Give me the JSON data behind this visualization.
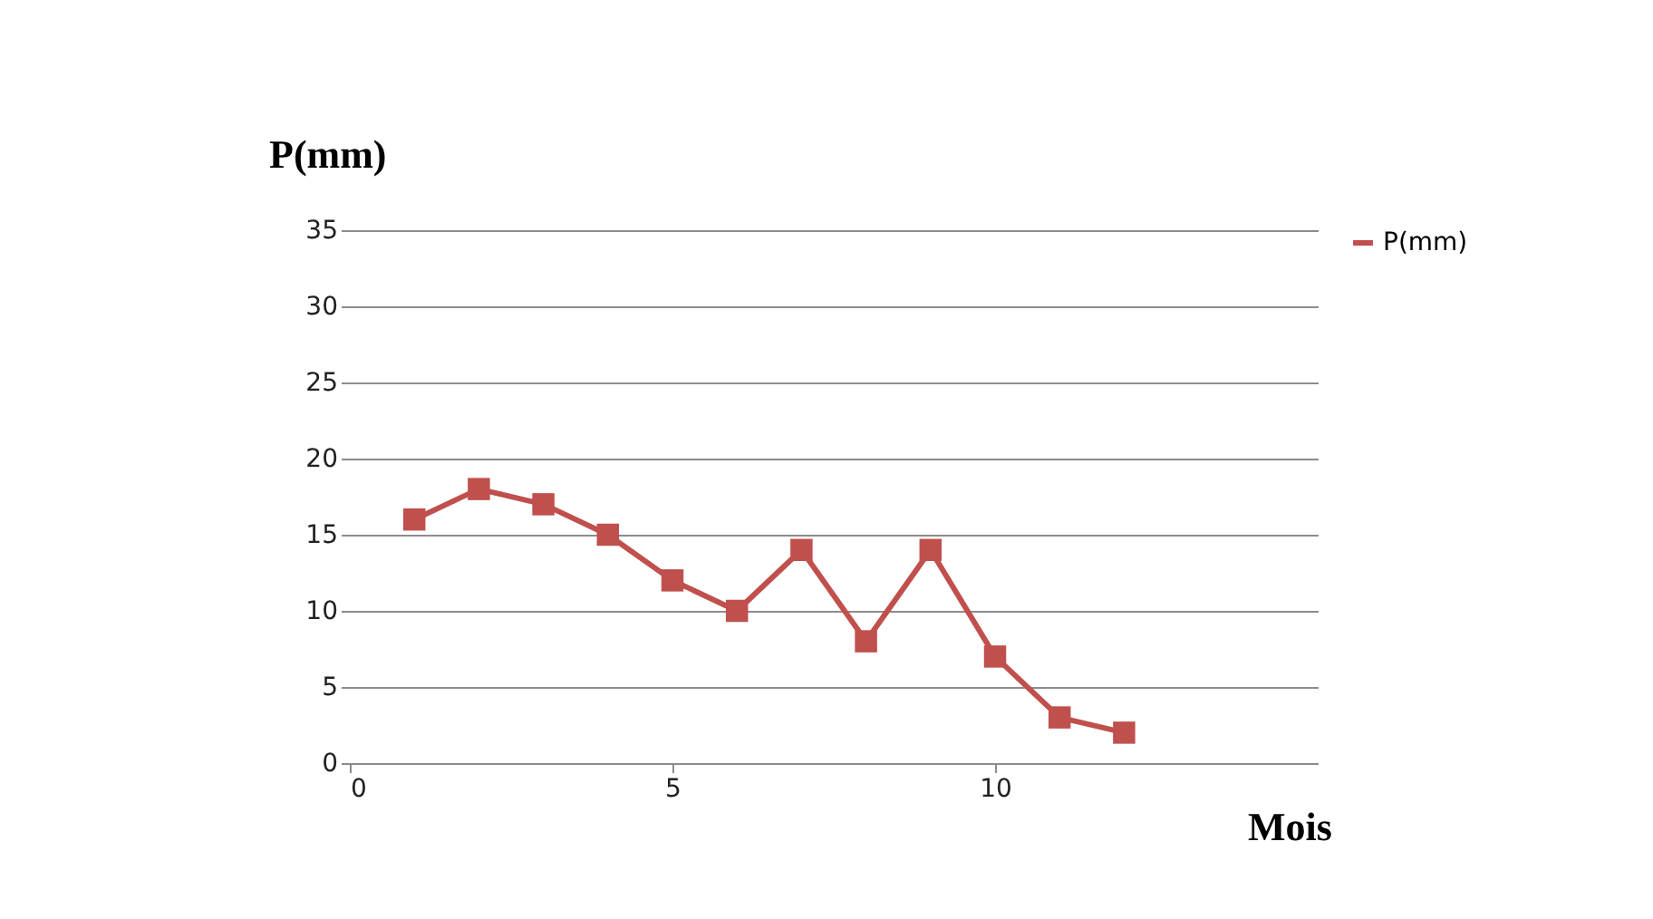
{
  "chart_data": {
    "type": "line",
    "xlabel": "Mois",
    "ylabel": "P(mm)",
    "x": [
      1,
      2,
      3,
      4,
      5,
      6,
      7,
      8,
      9,
      10,
      11,
      12
    ],
    "series": [
      {
        "name": "P(mm)",
        "color": "#c0504d",
        "values": [
          16,
          18,
          17,
          15,
          12,
          10,
          14,
          8,
          14,
          7,
          3,
          2
        ]
      }
    ],
    "xlim": [
      0,
      15
    ],
    "xticks": [
      0,
      5,
      10
    ],
    "ylim": [
      0,
      35
    ],
    "yticks": [
      0,
      5,
      10,
      15,
      20,
      25,
      30,
      35
    ],
    "grid": "y",
    "legend": "right",
    "marker": "square",
    "line_style": "solid"
  }
}
